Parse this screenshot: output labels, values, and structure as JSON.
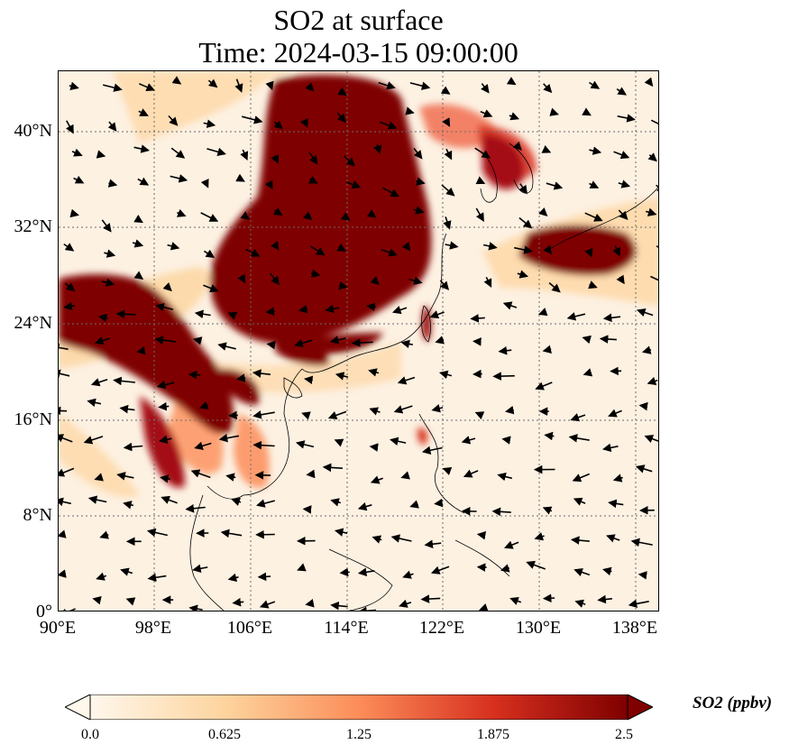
{
  "title": {
    "line1": "SO2 at surface",
    "line2": "Time: 2024-03-15 09:00:00"
  },
  "axes": {
    "lon_labels": [
      "90°E",
      "98°E",
      "106°E",
      "114°E",
      "122°E",
      "130°E",
      "138°E"
    ],
    "lat_labels": [
      "0°",
      "8°N",
      "16°N",
      "24°N",
      "32°N",
      "40°N"
    ],
    "lon_range": [
      90,
      140
    ],
    "lat_range": [
      0,
      45
    ],
    "gridlines": "dotted"
  },
  "colorbar": {
    "label": "SO2 (ppbv)",
    "ticks": [
      "0.0",
      "0.625",
      "1.25",
      "1.875",
      "2.5"
    ],
    "range": [
      0,
      2.5
    ],
    "colormap": "OrRd",
    "extend": "both",
    "colors": [
      "#fff7ec",
      "#fdd49e",
      "#fc8d59",
      "#d7301f",
      "#7f0000"
    ]
  },
  "chart_data": {
    "type": "heatmap",
    "variable": "SO2",
    "units": "ppbv",
    "overlay": "wind vectors",
    "high_regions": [
      {
        "lon": [
          101,
          124
        ],
        "lat": [
          25,
          45
        ],
        "value": 2.5
      },
      {
        "lon": [
          90,
          104
        ],
        "lat": [
          18,
          27
        ],
        "value": 2.5
      },
      {
        "lon": [
          98,
          106
        ],
        "lat": [
          15,
          20
        ],
        "value": 2.4
      },
      {
        "lon": [
          127,
          136
        ],
        "lat": [
          29,
          33
        ],
        "value": 2.3
      },
      {
        "lon": [
          125,
          131
        ],
        "lat": [
          35,
          40
        ],
        "value": 2.0
      },
      {
        "lon": [
          105,
          110
        ],
        "lat": [
          14,
          17
        ],
        "value": 1.6
      },
      {
        "lon": [
          120,
          121
        ],
        "lat": [
          22,
          25
        ],
        "value": 2.2
      }
    ]
  }
}
